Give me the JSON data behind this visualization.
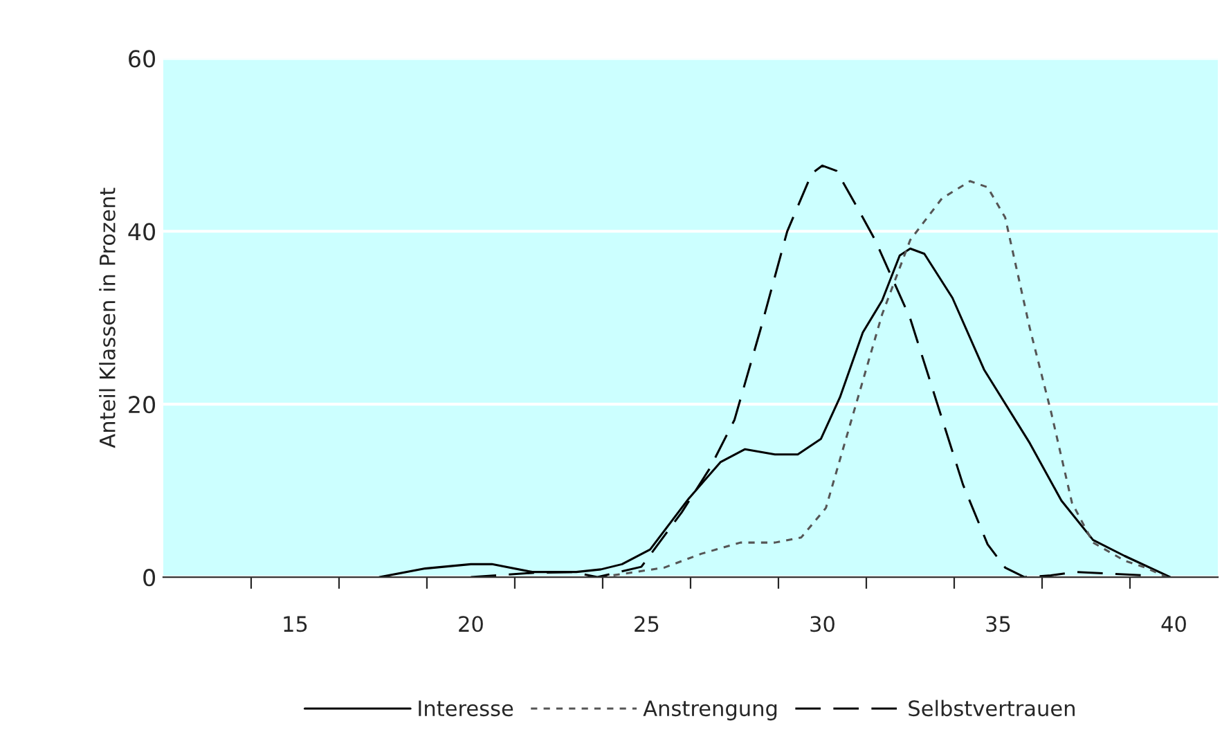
{
  "chart_data": {
    "type": "line",
    "ylabel": "Anteil Klassen in Prozent",
    "xlim": [
      11.25,
      41.25
    ],
    "xticks": [
      {
        "value": 13.75,
        "label": null
      },
      15,
      {
        "value": 16.25,
        "label": null
      },
      {
        "value": 18.75,
        "label": null
      },
      20,
      {
        "value": 21.25,
        "label": null
      },
      {
        "value": 23.75,
        "label": null
      },
      25,
      {
        "value": 26.25,
        "label": null
      },
      {
        "value": 28.75,
        "label": null
      },
      30,
      {
        "value": 31.25,
        "label": null
      },
      {
        "value": 33.75,
        "label": null
      },
      35,
      {
        "value": 36.25,
        "label": null
      },
      {
        "value": 38.75,
        "label": null
      },
      40
    ],
    "ylim": [
      0,
      60
    ],
    "yticks": [
      0,
      20,
      40,
      60
    ],
    "grid": "y",
    "legend": "bottom",
    "marker": "none",
    "series": [
      {
        "name": "Interesse",
        "color": "#000000",
        "line_style": "solid",
        "x": [
          17.4,
          18.7,
          20.0,
          20.6,
          21.75,
          23.0,
          23.7,
          24.3,
          25.1,
          26.2,
          27.1,
          27.8,
          28.65,
          29.3,
          29.96,
          30.5,
          31.15,
          31.7,
          32.2,
          32.5,
          32.9,
          33.7,
          34.6,
          35.9,
          36.8,
          37.7,
          38.6,
          39.9
        ],
        "values": [
          0,
          1.0,
          1.5,
          1.5,
          0.6,
          0.6,
          0.9,
          1.5,
          3.2,
          9.1,
          13.3,
          14.8,
          14.2,
          14.2,
          16.0,
          20.8,
          28.3,
          32.0,
          37.2,
          38.0,
          37.4,
          32.3,
          24.0,
          15.5,
          8.85,
          4.3,
          2.45,
          0
        ]
      },
      {
        "name": "Anstrengung",
        "color": "#555555",
        "line_style": "dotted",
        "x": [
          23.7,
          25.5,
          26.55,
          27.67,
          28.65,
          29.4,
          30.1,
          30.9,
          31.7,
          32.5,
          33.4,
          34.2,
          34.7,
          35.2,
          35.9,
          36.5,
          37.1,
          37.7,
          38.6,
          39.2,
          39.8
        ],
        "values": [
          0,
          1.1,
          2.7,
          4.0,
          4.0,
          4.6,
          8.0,
          19.2,
          30.4,
          39.0,
          43.8,
          45.8,
          45.1,
          41.6,
          28.8,
          19.2,
          8.6,
          4.0,
          1.9,
          1.1,
          0
        ]
      },
      {
        "name": "Selbstvertrauen",
        "color": "#000000",
        "line_style": "dashed",
        "x": [
          20.0,
          21.75,
          22.9,
          23.6,
          24.85,
          26.0,
          26.8,
          27.5,
          28.25,
          29.0,
          29.7,
          30.0,
          30.4,
          31.0,
          31.5,
          32.5,
          33.25,
          34.0,
          34.7,
          35.2,
          35.75,
          36.5,
          37.2,
          39.2
        ],
        "values": [
          0,
          0.5,
          0.6,
          0,
          1.2,
          7.5,
          12.6,
          18.2,
          28.8,
          40.0,
          46.7,
          47.6,
          47.0,
          42.7,
          39.0,
          29.9,
          20.3,
          10.7,
          3.8,
          1.1,
          0,
          0.2,
          0.6,
          0.2
        ]
      }
    ]
  }
}
